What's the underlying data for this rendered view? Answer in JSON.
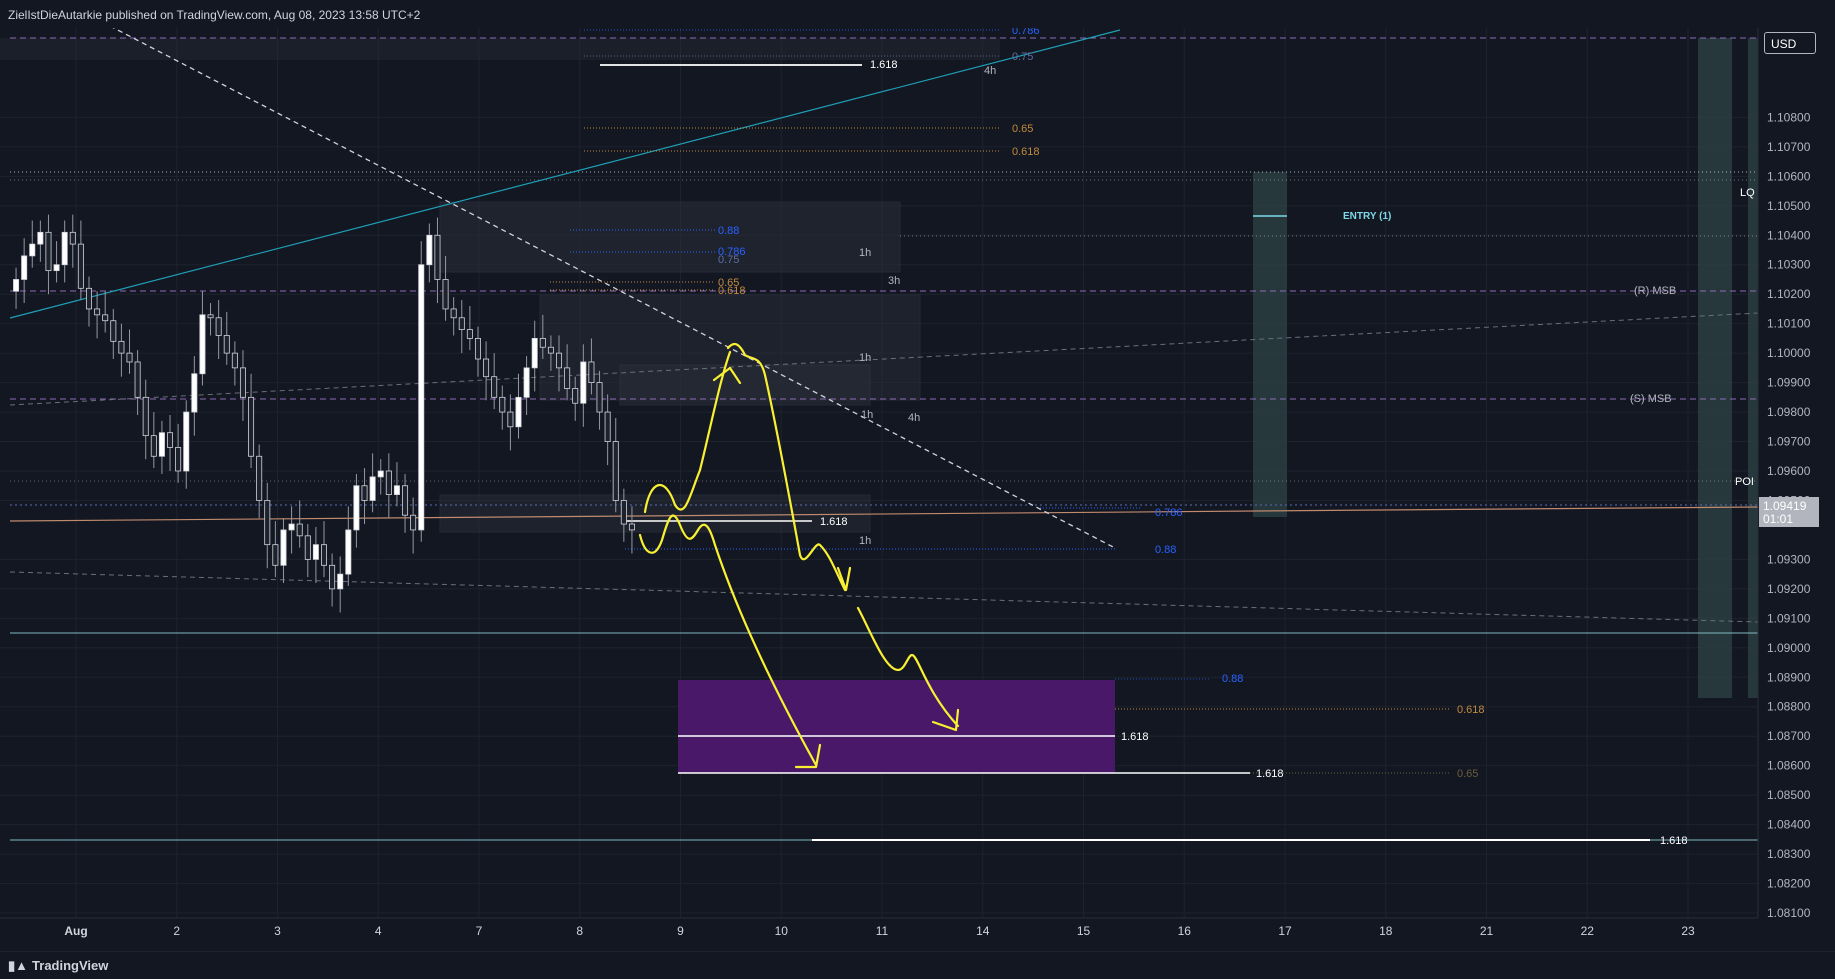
{
  "header": {
    "publisher_text": "ZielIstDieAutarkie published on TradingView.com, Aug 08, 2023 13:58 UTC+2"
  },
  "footer": {
    "brand": "TradingView"
  },
  "currency_button": "USD",
  "last_price": {
    "value": "1.09419",
    "countdown": "01:01"
  },
  "colors": {
    "background": "#131722",
    "yellow_drawing": "#f9f032",
    "purple_zone": "#4a1868",
    "teal_line": "#1e9fb5",
    "fib_blue": "#2962ff",
    "fib_orange": "#c08a3e"
  },
  "chart_data": {
    "type": "candlestick",
    "y_axis": {
      "min": 1.081,
      "max": 1.111,
      "ticks": [
        "1.10800",
        "1.10700",
        "1.10600",
        "1.10500",
        "1.10400",
        "1.10300",
        "1.10200",
        "1.10100",
        "1.10000",
        "1.09900",
        "1.09800",
        "1.09700",
        "1.09600",
        "1.09500",
        "1.09300",
        "1.09200",
        "1.09100",
        "1.09000",
        "1.08900",
        "1.08800",
        "1.08700",
        "1.08600",
        "1.08500",
        "1.08400",
        "1.08300",
        "1.08200",
        "1.08100"
      ]
    },
    "x_axis": {
      "ticks": [
        "Aug",
        "2",
        "3",
        "4",
        "7",
        "8",
        "9",
        "10",
        "11",
        "14",
        "15",
        "16",
        "17",
        "18",
        "21",
        "22",
        "23"
      ]
    },
    "candles_close_path": [
      1.1025,
      1.1033,
      1.1037,
      1.1041,
      1.1028,
      1.103,
      1.1041,
      1.1037,
      1.1022,
      1.1015,
      1.1013,
      1.1011,
      1.1004,
      1.1,
      1.0997,
      1.0985,
      1.0972,
      1.0965,
      1.0973,
      1.0968,
      1.096,
      1.098,
      1.0993,
      1.1013,
      1.1012,
      1.1006,
      1.1,
      1.0995,
      1.0985,
      1.0965,
      1.095,
      1.0935,
      1.0928,
      1.094,
      1.0942,
      1.0938,
      1.093,
      1.0935,
      1.0928,
      1.092,
      1.0925,
      1.094,
      1.0955,
      1.095,
      1.0958,
      1.096,
      1.0952,
      1.0955,
      1.0945,
      1.094,
      1.103,
      1.104,
      1.1025,
      1.1015,
      1.1012,
      1.1008,
      1.1005,
      1.0998,
      1.0992,
      1.0985,
      1.098,
      1.0975,
      1.0985,
      1.0995,
      1.1005,
      1.1002,
      1.1,
      1.0995,
      1.0988,
      1.0983,
      1.0997,
      1.099,
      1.098,
      1.097,
      1.095,
      1.0942,
      1.094
    ],
    "annotations": [
      {
        "text": "0.786",
        "color": "#2962ff"
      },
      {
        "text": "0.75",
        "color": "#5d6ea3"
      },
      {
        "text": "1.618",
        "color": "#ffffff"
      },
      {
        "text": "4h",
        "color": "#b2b5be"
      },
      {
        "text": "0.65",
        "color": "#c08a3e"
      },
      {
        "text": "0.618",
        "color": "#c08a3e"
      },
      {
        "text": "0.88",
        "color": "#2962ff"
      },
      {
        "text": "0.786",
        "color": "#2962ff"
      },
      {
        "text": "0.75",
        "color": "#5d6ea3"
      },
      {
        "text": "1h",
        "color": "#b2b5be"
      },
      {
        "text": "0.65",
        "color": "#c08a3e"
      },
      {
        "text": "0.618",
        "color": "#c08a3e"
      },
      {
        "text": "3h",
        "color": "#b2b5be"
      },
      {
        "text": "1h",
        "color": "#b2b5be"
      },
      {
        "text": "1h",
        "color": "#b2b5be"
      },
      {
        "text": "4h",
        "color": "#b2b5be"
      },
      {
        "text": "1.618",
        "color": "#ffffff"
      },
      {
        "text": "1h",
        "color": "#b2b5be"
      },
      {
        "text": "0.786",
        "color": "#2962ff"
      },
      {
        "text": "0.88",
        "color": "#2962ff"
      },
      {
        "text": "ENTRY (1)",
        "color": "#7fd8e8"
      },
      {
        "text": "(R) MSB",
        "color": "#b2b5be"
      },
      {
        "text": "(S) MSB",
        "color": "#b2b5be"
      },
      {
        "text": "LQ",
        "color": "#ffffff"
      },
      {
        "text": "POI",
        "color": "#ffffff"
      },
      {
        "text": "0.88",
        "color": "#2962ff"
      },
      {
        "text": "0.618",
        "color": "#c08a3e"
      },
      {
        "text": "1.618",
        "color": "#ffffff"
      },
      {
        "text": "1.618",
        "color": "#ffffff"
      },
      {
        "text": "0.65",
        "color": "#6b5d3e"
      },
      {
        "text": "1.618",
        "color": "#ffffff"
      }
    ]
  }
}
